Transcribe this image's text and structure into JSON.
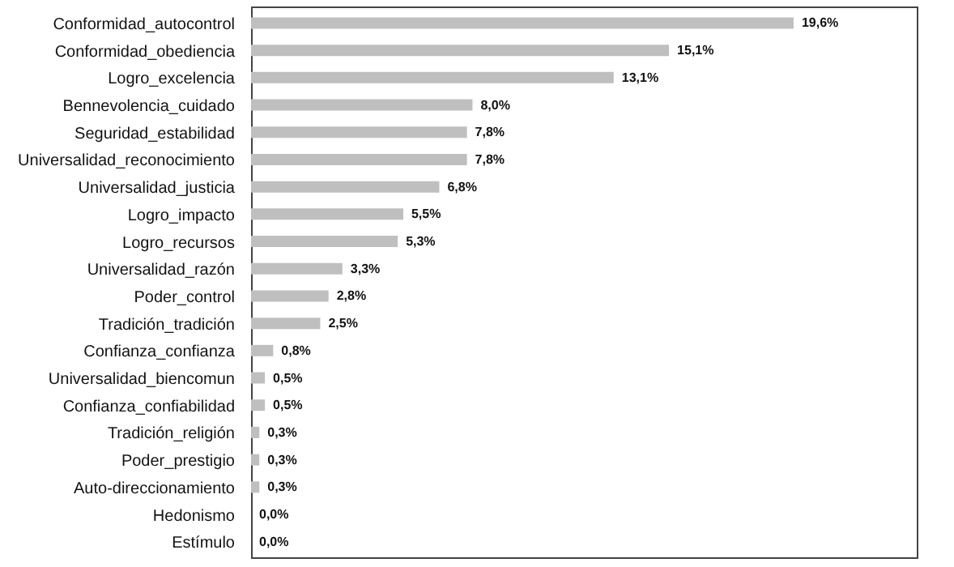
{
  "chart_data": {
    "type": "bar",
    "orientation": "horizontal",
    "categories": [
      "Conformidad_autocontrol",
      "Conformidad_obediencia",
      "Logro_excelencia",
      "Bennevolencia_cuidado",
      "Seguridad_estabilidad",
      "Universalidad_reconocimiento",
      "Universalidad_justicia",
      "Logro_impacto",
      "Logro_recursos",
      "Universalidad_razón",
      "Poder_control",
      "Tradición_tradición",
      "Confianza_confianza",
      "Universalidad_biencomun",
      "Confianza_confiabilidad",
      "Tradición_religión",
      "Poder_prestigio",
      "Auto-direccionamiento",
      "Hedonismo",
      "Estímulo"
    ],
    "values": [
      19.6,
      15.1,
      13.1,
      8.0,
      7.8,
      7.8,
      6.8,
      5.5,
      5.3,
      3.3,
      2.8,
      2.5,
      0.8,
      0.5,
      0.5,
      0.3,
      0.3,
      0.3,
      0.0,
      0.0
    ],
    "value_labels": [
      "19,6%",
      "15,1%",
      "13,1%",
      "8,0%",
      "7,8%",
      "7,8%",
      "6,8%",
      "5,5%",
      "5,3%",
      "3,3%",
      "2,8%",
      "2,5%",
      "0,8%",
      "0,5%",
      "0,5%",
      "0,3%",
      "0,3%",
      "0,3%",
      "0,0%",
      "0,0%"
    ],
    "color": "#bfbfbf"
  }
}
